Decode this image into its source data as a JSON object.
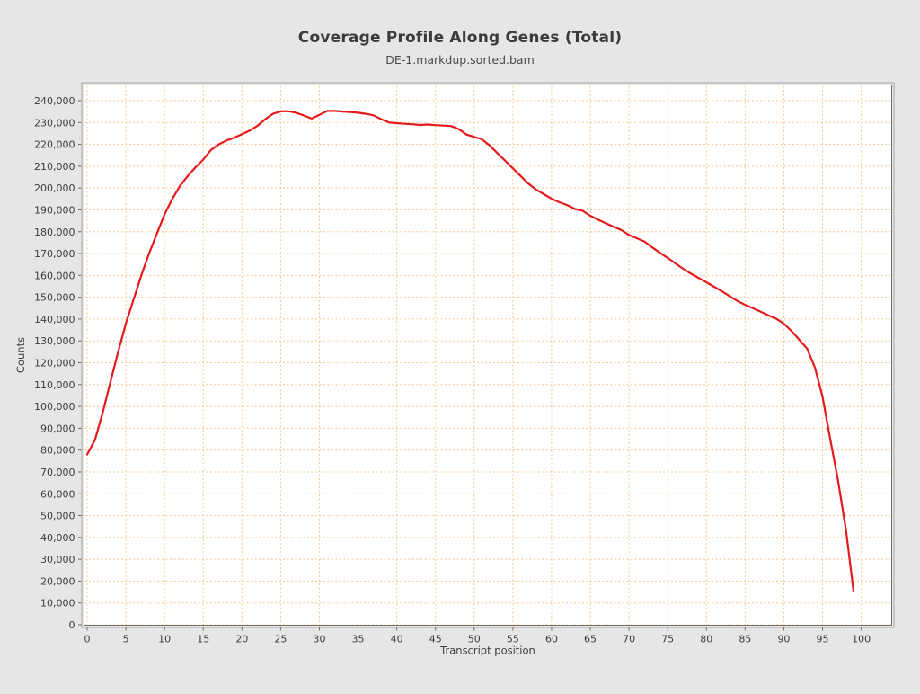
{
  "page": {
    "background": "#e6e6e6"
  },
  "header": {
    "title": "Coverage Profile Along Genes (Total)",
    "subtitle": "DE-1.markdup.sorted.bam"
  },
  "chart_data": {
    "type": "line",
    "title": "Coverage Profile Along Genes (Total)",
    "subtitle": "DE-1.markdup.sorted.bam",
    "xlabel": "Transcript position",
    "ylabel": "Counts",
    "xlim": [
      0,
      100
    ],
    "ylim": [
      0,
      240000
    ],
    "x_ticks": [
      0,
      5,
      10,
      15,
      20,
      25,
      30,
      35,
      40,
      45,
      50,
      55,
      60,
      65,
      70,
      75,
      80,
      85,
      90,
      95,
      100
    ],
    "y_ticks": [
      0,
      10000,
      20000,
      30000,
      40000,
      50000,
      60000,
      70000,
      80000,
      90000,
      100000,
      110000,
      120000,
      130000,
      140000,
      150000,
      160000,
      170000,
      180000,
      190000,
      200000,
      210000,
      220000,
      230000,
      240000
    ],
    "grid": "dashed",
    "legend_position": "none",
    "x": [
      0,
      1,
      2,
      3,
      4,
      5,
      6,
      7,
      8,
      9,
      10,
      11,
      12,
      13,
      14,
      15,
      16,
      17,
      18,
      19,
      20,
      21,
      22,
      23,
      24,
      25,
      26,
      27,
      28,
      29,
      30,
      31,
      32,
      33,
      34,
      35,
      36,
      37,
      38,
      39,
      40,
      41,
      42,
      43,
      44,
      45,
      46,
      47,
      48,
      49,
      50,
      51,
      52,
      53,
      54,
      55,
      56,
      57,
      58,
      59,
      60,
      61,
      62,
      63,
      64,
      65,
      66,
      67,
      68,
      69,
      70,
      71,
      72,
      73,
      74,
      75,
      76,
      77,
      78,
      79,
      80,
      81,
      82,
      83,
      84,
      85,
      86,
      87,
      88,
      89,
      90,
      91,
      92,
      93,
      94,
      95,
      96,
      97,
      98,
      99
    ],
    "series": [
      {
        "name": "DE-1.markdup.sorted.bam",
        "color": "#e41a1c",
        "values": [
          78000,
          84500,
          97000,
          111000,
          125000,
          138000,
          149000,
          160000,
          170000,
          179000,
          188000,
          195000,
          201000,
          205500,
          209500,
          213000,
          217500,
          220000,
          221800,
          223000,
          224700,
          226300,
          228500,
          231500,
          234000,
          235100,
          235200,
          234500,
          233200,
          231800,
          233500,
          235300,
          235300,
          235000,
          234800,
          234500,
          234000,
          233300,
          231500,
          230000,
          229700,
          229400,
          229200,
          228900,
          229100,
          228800,
          228600,
          228400,
          227000,
          224500,
          223400,
          222300,
          219500,
          216000,
          212500,
          209000,
          205500,
          202000,
          199300,
          197200,
          195100,
          193500,
          192200,
          190400,
          189600,
          187300,
          185500,
          183900,
          182300,
          180800,
          178500,
          177000,
          175500,
          172800,
          170300,
          168000,
          165500,
          163000,
          160800,
          158800,
          156800,
          154800,
          152700,
          150500,
          148300,
          146500,
          145000,
          143400,
          141700,
          140200,
          137900,
          134500,
          130500,
          126500,
          118000,
          104500,
          85000,
          66000,
          44000,
          15500
        ]
      }
    ],
    "colors": {
      "line": "#e41a1c",
      "grid": "#f8c894",
      "frame": "#6e6e6e",
      "frame_outer": "#a6a6a6",
      "plot_bg": "#ffffff",
      "text": "#3c3c3c"
    }
  }
}
